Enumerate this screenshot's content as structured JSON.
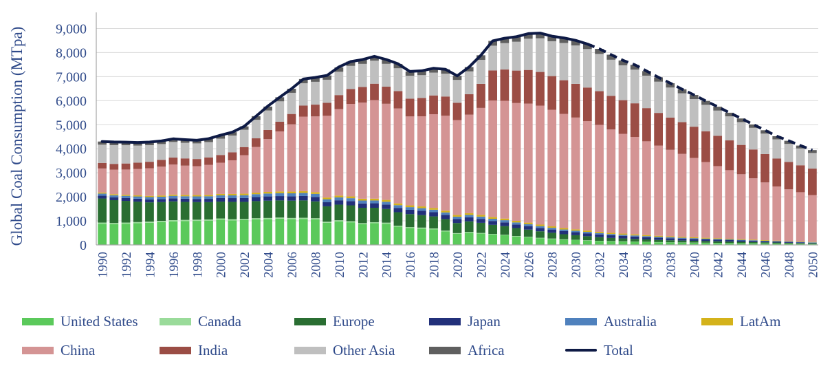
{
  "chart_data": {
    "type": "bar",
    "stacked": true,
    "title": "",
    "ylabel": "Global Coal Consumption (MTpa)",
    "xlabel": "",
    "ylim": [
      0,
      9500
    ],
    "yticks": [
      0,
      1000,
      2000,
      3000,
      4000,
      5000,
      6000,
      7000,
      8000,
      9000
    ],
    "ytick_labels": [
      "0",
      "1,000",
      "2,000",
      "3,000",
      "4,000",
      "5,000",
      "6,000",
      "7,000",
      "8,000",
      "9,000"
    ],
    "grid": true,
    "categories": [
      1990,
      1991,
      1992,
      1993,
      1994,
      1995,
      1996,
      1997,
      1998,
      1999,
      2000,
      2001,
      2002,
      2003,
      2004,
      2005,
      2006,
      2007,
      2008,
      2009,
      2010,
      2011,
      2012,
      2013,
      2014,
      2015,
      2016,
      2017,
      2018,
      2019,
      2020,
      2021,
      2022,
      2023,
      2024,
      2025,
      2026,
      2027,
      2028,
      2029,
      2030,
      2031,
      2032,
      2033,
      2034,
      2035,
      2036,
      2037,
      2038,
      2039,
      2040,
      2041,
      2042,
      2043,
      2044,
      2045,
      2046,
      2047,
      2048,
      2049,
      2050
    ],
    "xtick_labels": [
      "1990",
      "1992",
      "1994",
      "1996",
      "1998",
      "2000",
      "2002",
      "2004",
      "2006",
      "2008",
      "2010",
      "2012",
      "2014",
      "2016",
      "2018",
      "2020",
      "2022",
      "2024",
      "2026",
      "2028",
      "2030",
      "2032",
      "2034",
      "2036",
      "2038",
      "2040",
      "2042",
      "2044",
      "2046",
      "2048",
      "2050"
    ],
    "series": [
      {
        "name": "United States",
        "color": "#5BC95B",
        "values": [
          880,
          860,
          880,
          900,
          920,
          950,
          980,
          990,
          1000,
          1010,
          1050,
          1020,
          1030,
          1060,
          1070,
          1090,
          1070,
          1080,
          1060,
          920,
          980,
          940,
          860,
          900,
          880,
          760,
          700,
          680,
          650,
          560,
          460,
          510,
          470,
          430,
          400,
          350,
          320,
          280,
          250,
          220,
          200,
          180,
          160,
          150,
          140,
          130,
          120,
          110,
          100,
          95,
          90,
          85,
          80,
          75,
          70,
          65,
          60,
          55,
          50,
          45,
          40
        ]
      },
      {
        "name": "Canada",
        "color": "#9ADB9A",
        "values": [
          50,
          50,
          50,
          50,
          50,
          50,
          50,
          50,
          50,
          50,
          50,
          50,
          50,
          50,
          50,
          50,
          50,
          50,
          50,
          45,
          45,
          45,
          45,
          45,
          45,
          40,
          40,
          40,
          35,
          35,
          30,
          30,
          28,
          25,
          22,
          20,
          18,
          16,
          15,
          14,
          13,
          12,
          11,
          10,
          10,
          9,
          9,
          8,
          8,
          7,
          7,
          6,
          6,
          5,
          5,
          5,
          4,
          4,
          4,
          3,
          3
        ]
      },
      {
        "name": "Europe",
        "color": "#2A6E32",
        "values": [
          1000,
          950,
          900,
          850,
          800,
          780,
          780,
          750,
          730,
          720,
          700,
          720,
          710,
          710,
          720,
          710,
          720,
          720,
          700,
          640,
          650,
          660,
          640,
          600,
          570,
          560,
          540,
          520,
          500,
          480,
          420,
          440,
          420,
          380,
          360,
          330,
          300,
          270,
          240,
          210,
          190,
          170,
          150,
          130,
          120,
          110,
          100,
          90,
          85,
          80,
          75,
          70,
          65,
          60,
          55,
          50,
          45,
          40,
          35,
          30,
          25
        ]
      },
      {
        "name": "Japan",
        "color": "#22307A",
        "values": [
          115,
          115,
          118,
          120,
          122,
          125,
          128,
          130,
          132,
          135,
          150,
          155,
          160,
          170,
          175,
          180,
          180,
          185,
          185,
          170,
          180,
          175,
          180,
          185,
          185,
          180,
          180,
          180,
          175,
          175,
          165,
          170,
          165,
          160,
          155,
          150,
          145,
          140,
          135,
          130,
          125,
          120,
          115,
          110,
          105,
          100,
          95,
          90,
          85,
          80,
          75,
          70,
          65,
          60,
          55,
          50,
          45,
          40,
          35,
          30,
          25
        ]
      },
      {
        "name": "Australia",
        "color": "#4F81BD",
        "values": [
          90,
          90,
          92,
          95,
          98,
          100,
          102,
          104,
          106,
          108,
          112,
          115,
          118,
          120,
          122,
          124,
          126,
          128,
          128,
          125,
          125,
          122,
          120,
          118,
          115,
          112,
          110,
          108,
          105,
          102,
          100,
          98,
          95,
          92,
          90,
          85,
          80,
          76,
          72,
          68,
          64,
          60,
          56,
          52,
          48,
          45,
          42,
          40,
          38,
          36,
          34,
          32,
          30,
          28,
          26,
          24,
          22,
          20,
          18,
          16,
          15
        ]
      },
      {
        "name": "LatAm",
        "color": "#D4B21A",
        "values": [
          45,
          45,
          46,
          47,
          48,
          50,
          52,
          54,
          55,
          56,
          58,
          60,
          62,
          64,
          66,
          68,
          70,
          72,
          72,
          70,
          72,
          74,
          75,
          76,
          76,
          75,
          74,
          73,
          72,
          71,
          68,
          70,
          70,
          69,
          68,
          66,
          64,
          62,
          60,
          58,
          56,
          54,
          52,
          50,
          48,
          46,
          44,
          42,
          40,
          38,
          36,
          34,
          32,
          30,
          28,
          26,
          24,
          22,
          20,
          18,
          16
        ]
      },
      {
        "name": "China",
        "color": "#D49494",
        "values": [
          1000,
          1020,
          1050,
          1100,
          1150,
          1200,
          1250,
          1220,
          1200,
          1250,
          1300,
          1400,
          1600,
          1900,
          2200,
          2500,
          2800,
          3100,
          3150,
          3400,
          3600,
          3850,
          4000,
          4100,
          4000,
          3950,
          3700,
          3750,
          3900,
          3950,
          3950,
          4100,
          4450,
          4850,
          4900,
          4900,
          4950,
          4950,
          4850,
          4750,
          4650,
          4550,
          4450,
          4300,
          4150,
          4050,
          3900,
          3750,
          3600,
          3450,
          3300,
          3150,
          3000,
          2850,
          2700,
          2550,
          2400,
          2250,
          2150,
          2050,
          1950
        ]
      },
      {
        "name": "India",
        "color": "#9B4D45",
        "values": [
          230,
          240,
          250,
          260,
          270,
          280,
          290,
          300,
          300,
          310,
          320,
          330,
          340,
          360,
          380,
          400,
          430,
          460,
          490,
          540,
          580,
          620,
          650,
          680,
          710,
          720,
          740,
          760,
          780,
          800,
          720,
          850,
          1000,
          1250,
          1300,
          1350,
          1400,
          1400,
          1400,
          1400,
          1400,
          1400,
          1400,
          1400,
          1400,
          1400,
          1380,
          1360,
          1340,
          1320,
          1300,
          1280,
          1260,
          1240,
          1220,
          1200,
          1180,
          1160,
          1140,
          1120,
          1100
        ]
      },
      {
        "name": "Other Asia",
        "color": "#BFBFBF",
        "values": [
          760,
          780,
          760,
          710,
          690,
          660,
          650,
          650,
          650,
          640,
          680,
          700,
          720,
          770,
          810,
          850,
          880,
          930,
          950,
          960,
          970,
          960,
          960,
          960,
          950,
          950,
          950,
          950,
          950,
          950,
          950,
          950,
          1000,
          1030,
          1100,
          1200,
          1300,
          1400,
          1450,
          1550,
          1600,
          1600,
          1550,
          1500,
          1450,
          1400,
          1350,
          1300,
          1250,
          1200,
          1150,
          1100,
          1050,
          1000,
          950,
          900,
          850,
          800,
          750,
          700,
          650
        ]
      },
      {
        "name": "Africa",
        "color": "#5F5F5F",
        "values": [
          130,
          130,
          130,
          130,
          130,
          130,
          130,
          130,
          130,
          130,
          140,
          140,
          140,
          150,
          160,
          170,
          170,
          175,
          180,
          180,
          180,
          180,
          180,
          180,
          180,
          180,
          180,
          180,
          180,
          180,
          170,
          180,
          190,
          200,
          200,
          210,
          210,
          210,
          210,
          210,
          210,
          210,
          210,
          210,
          200,
          200,
          190,
          180,
          180,
          170,
          170,
          160,
          160,
          150,
          150,
          140,
          140,
          130,
          130,
          120,
          120
        ]
      }
    ],
    "total": {
      "name": "Total",
      "color": "#0E1A45",
      "projection_start": 2031,
      "values": [
        4300,
        4280,
        4276,
        4262,
        4278,
        4325,
        4412,
        4378,
        4353,
        4419,
        4560,
        4690,
        4930,
        5354,
        5773,
        6142,
        6496,
        6900,
        6965,
        7050,
        7402,
        7626,
        7710,
        7844,
        7711,
        7532,
        7214,
        7241,
        7347,
        7303,
        7033,
        7399,
        7888,
        8486,
        8595,
        8661,
        8787,
        8809,
        8682,
        8610,
        8508,
        8356,
        8154,
        7912,
        7676,
        7490,
        7230,
        6970,
        6726,
        6476,
        6237,
        5987,
        5748,
        5498,
        5259,
        5010,
        4770,
        4521,
        4332,
        4132,
        3944
      ]
    }
  },
  "legend": {
    "items": [
      "United States",
      "Canada",
      "Europe",
      "Japan",
      "Australia",
      "LatAm",
      "China",
      "India",
      "Other Asia",
      "Africa",
      "Total"
    ]
  }
}
